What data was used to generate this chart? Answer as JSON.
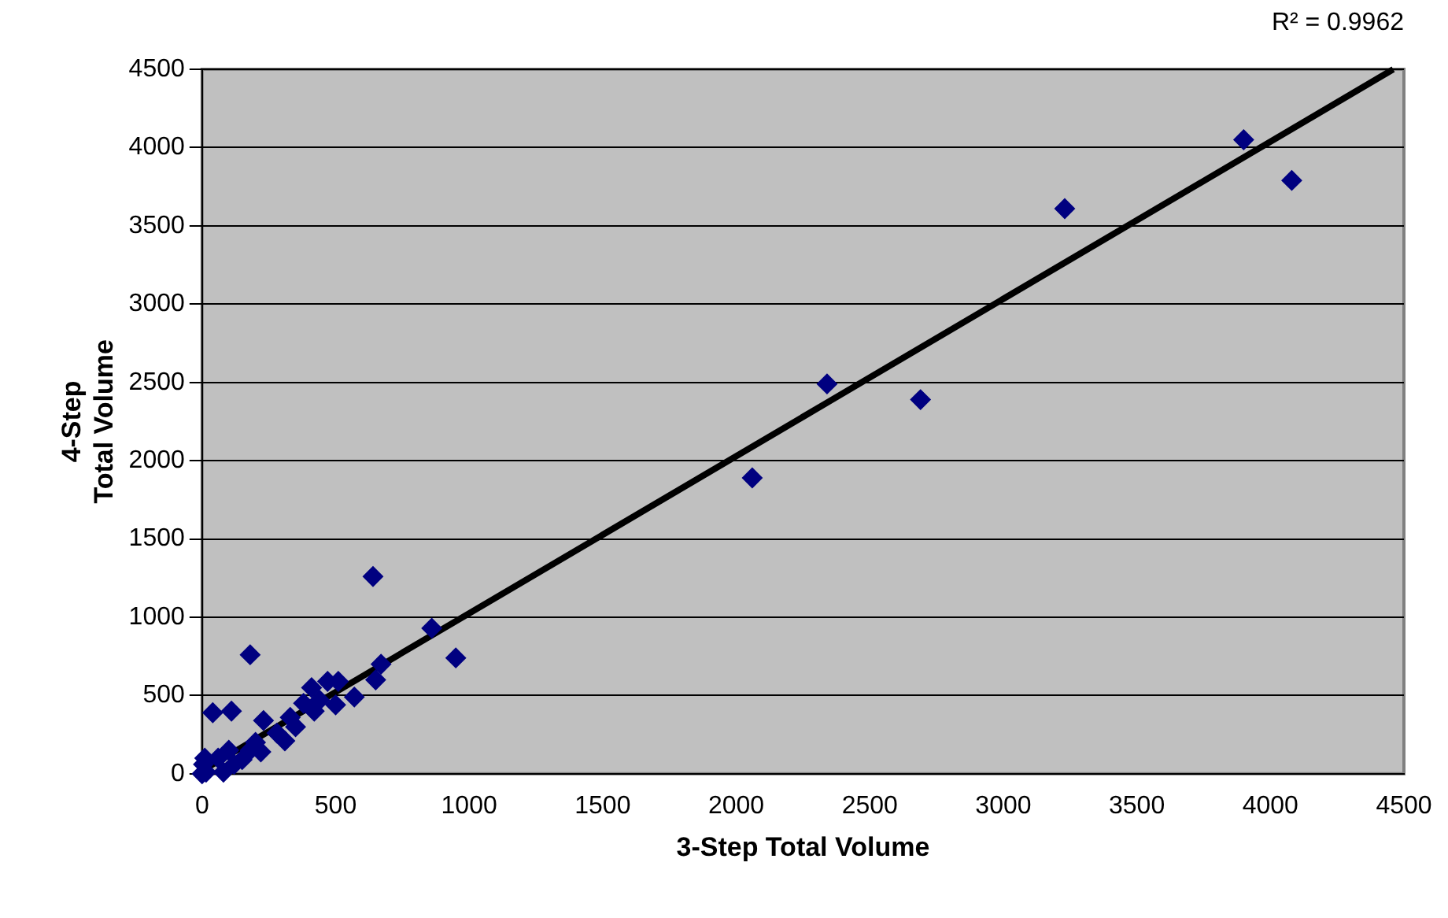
{
  "chart_data": {
    "type": "scatter",
    "xlabel": "3-Step Total Volume",
    "ylabel": "4-Step\nTotal Volume",
    "annotations": [
      "R² = 0.9962"
    ],
    "xlim": [
      0,
      4500
    ],
    "xticks": [
      0,
      500,
      1000,
      1500,
      2000,
      2500,
      3000,
      3500,
      4000,
      4500
    ],
    "ylim": [
      0,
      4500
    ],
    "yticks": [
      0,
      500,
      1000,
      1500,
      2000,
      2500,
      3000,
      3500,
      4000,
      4500
    ],
    "grid": "y",
    "legend": false,
    "marker": "diamond",
    "series": [
      {
        "color": "#000080",
        "x": [
          3900,
          4080,
          3230,
          2690,
          2340,
          2060,
          950,
          860,
          640,
          670,
          650,
          570,
          510,
          500,
          470,
          410,
          420,
          330,
          310,
          230,
          220,
          180,
          180,
          110,
          40,
          100,
          60,
          10,
          0,
          120,
          80,
          150,
          280,
          350,
          440,
          380,
          200,
          5,
          15
        ],
        "values": [
          4050,
          3790,
          3610,
          2390,
          2490,
          1890,
          740,
          930,
          1260,
          700,
          600,
          490,
          590,
          440,
          590,
          550,
          400,
          360,
          210,
          340,
          140,
          760,
          150,
          400,
          390,
          150,
          100,
          100,
          0,
          60,
          10,
          90,
          260,
          300,
          470,
          450,
          200,
          60,
          10
        ]
      },
      {
        "type": "line",
        "color": "#000000",
        "marker": "none",
        "x": [
          0,
          4460
        ],
        "values": [
          20,
          4500
        ]
      }
    ]
  }
}
